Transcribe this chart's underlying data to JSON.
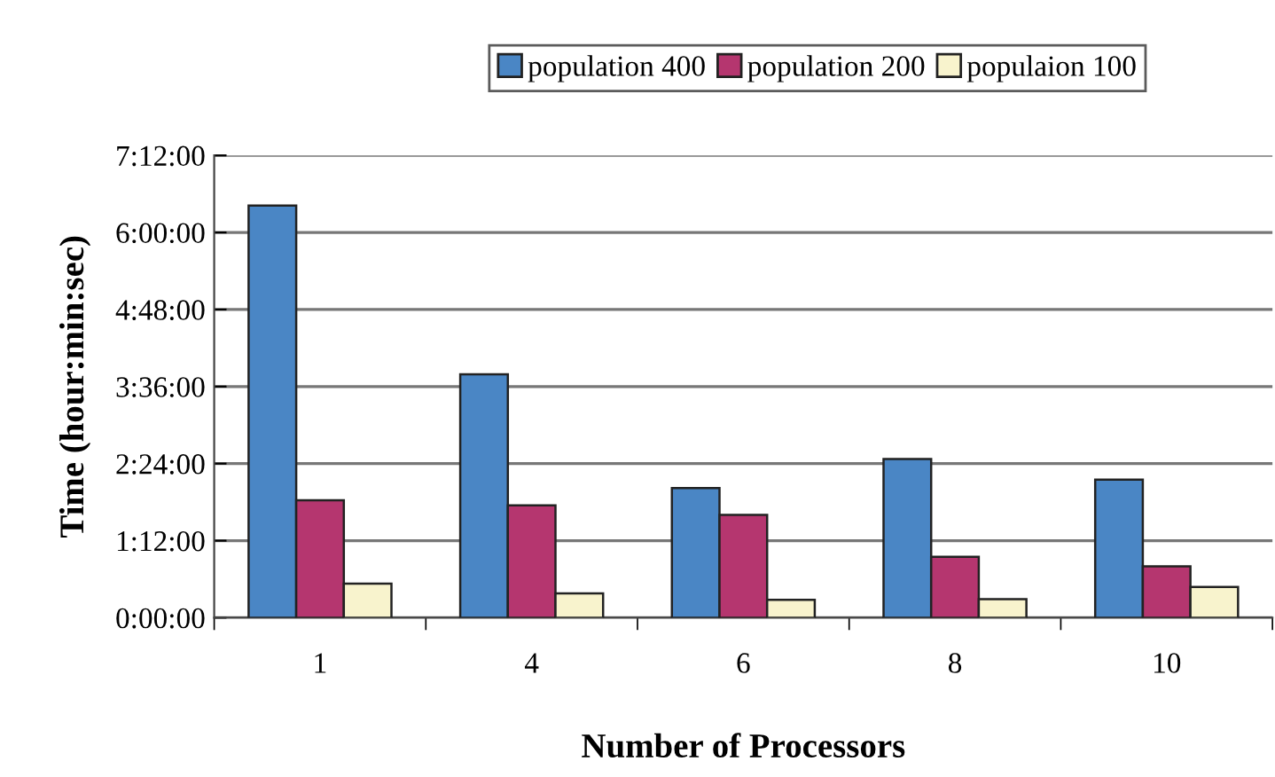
{
  "chart_data": {
    "type": "bar",
    "xlabel": "Number of Processors",
    "ylabel": "Time (hour:min:sec)",
    "categories": [
      "1",
      "4",
      "6",
      "8",
      "10"
    ],
    "series": [
      {
        "name": "population 400",
        "color": "#4a86c5",
        "values": [
          6.42,
          3.79,
          2.02,
          2.47,
          2.15
        ]
      },
      {
        "name": "population 200",
        "color": "#b5366f",
        "values": [
          1.83,
          1.75,
          1.6,
          0.95,
          0.8
        ]
      },
      {
        "name": "populaion 100",
        "color": "#f8f3cd",
        "values": [
          0.53,
          0.38,
          0.28,
          0.29,
          0.48
        ]
      }
    ],
    "ylim": [
      0,
      7.2
    ],
    "yticks": [
      {
        "value": 0,
        "label": "0:00:00"
      },
      {
        "value": 1.2,
        "label": "1:12:00"
      },
      {
        "value": 2.4,
        "label": "2:24:00"
      },
      {
        "value": 3.6,
        "label": "3:36:00"
      },
      {
        "value": 4.8,
        "label": "4:48:00"
      },
      {
        "value": 6,
        "label": "6:00:00"
      },
      {
        "value": 7.2,
        "label": "7:12:00"
      }
    ],
    "grid": "y",
    "legend": "top"
  }
}
